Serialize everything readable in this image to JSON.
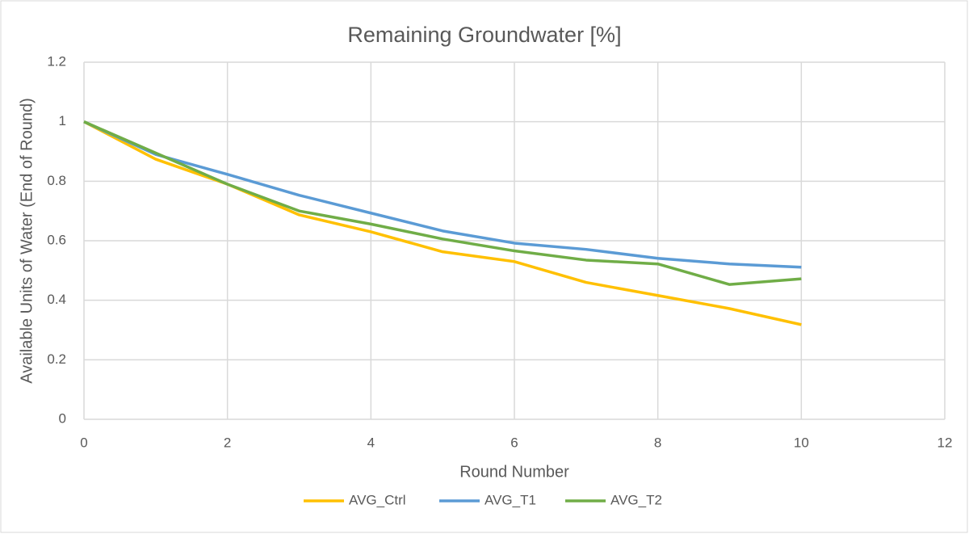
{
  "chart_data": {
    "type": "line",
    "title": "Remaining Groundwater [%]",
    "x_label": "Round Number",
    "y_label": "Available Units of Water (End of Round)",
    "x": [
      0,
      1,
      2,
      3,
      4,
      5,
      6,
      7,
      8,
      9,
      10
    ],
    "series": [
      {
        "name": "AVG_Ctrl",
        "color": "#FFC000",
        "values": [
          1,
          0.874,
          0.79,
          0.687,
          0.63,
          0.563,
          0.53,
          0.46,
          0.416,
          0.372,
          0.318
        ]
      },
      {
        "name": "AVG_T1",
        "color": "#5B9BD5",
        "values": [
          1,
          0.89,
          0.823,
          0.753,
          0.693,
          0.633,
          0.592,
          0.571,
          0.541,
          0.522,
          0.511
        ]
      },
      {
        "name": "AVG_T2",
        "color": "#70AD47",
        "values": [
          1,
          0.895,
          0.79,
          0.7,
          0.656,
          0.606,
          0.566,
          0.535,
          0.522,
          0.453,
          0.472
        ]
      }
    ],
    "xlim": [
      0,
      12
    ],
    "xticks": [
      0,
      2,
      4,
      6,
      8,
      10,
      12
    ],
    "ylim": [
      0,
      1.2
    ],
    "yticks": [
      0,
      0.2,
      0.4,
      0.6,
      0.8,
      1,
      1.2
    ],
    "grid": true,
    "legend": "bottom"
  }
}
